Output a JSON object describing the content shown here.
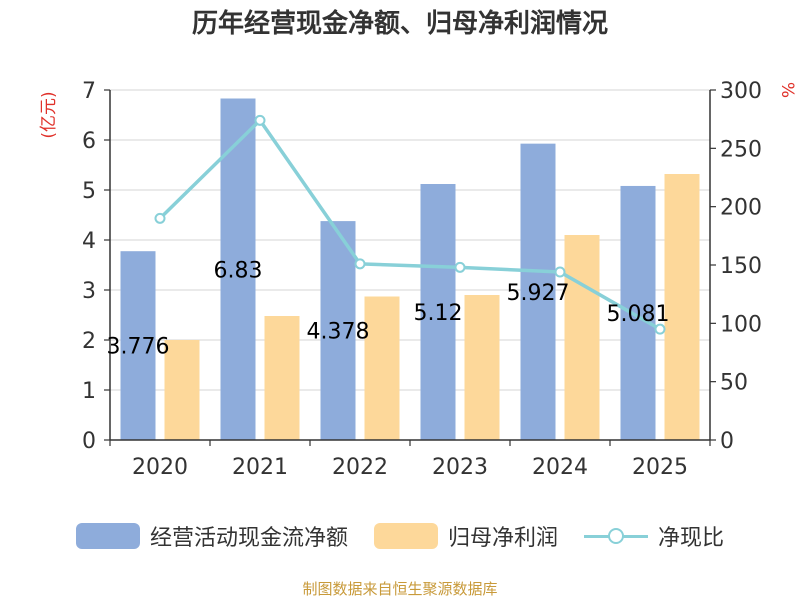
{
  "colors": {
    "bar_cashflow": "#8eacdb",
    "bar_profit": "#fdd89a",
    "line_ratio": "#88d0d8",
    "unit_label": "#e0312a",
    "source_text": "#c89a3a"
  },
  "chart_data": {
    "type": "bar",
    "title": "历年经营现金净额、归母净利润情况",
    "categories": [
      "2020",
      "2021",
      "2022",
      "2023",
      "2024",
      "2025"
    ],
    "y_left_label": "(亿元)",
    "y_right_label": "%",
    "ylim_left": [
      0,
      7
    ],
    "ylim_right": [
      0,
      300
    ],
    "yticks_left": [
      "0",
      "1",
      "2",
      "3",
      "4",
      "5",
      "6",
      "7"
    ],
    "yticks_right": [
      "0",
      "50",
      "100",
      "150",
      "200",
      "250",
      "300"
    ],
    "grid": true,
    "legend_position": "bottom",
    "series": [
      {
        "name": "经营活动现金流净额",
        "type": "bar",
        "axis": "left",
        "values": [
          3.776,
          6.83,
          4.378,
          5.12,
          5.927,
          5.081
        ],
        "labels": [
          "3.776",
          "6.83",
          "4.378",
          "5.12",
          "5.927",
          "5.081"
        ]
      },
      {
        "name": "归母净利润",
        "type": "bar",
        "axis": "left",
        "values": [
          2.0,
          2.48,
          2.87,
          2.9,
          4.1,
          5.32
        ]
      },
      {
        "name": "净现比",
        "type": "line",
        "axis": "right",
        "values": [
          190,
          274,
          151,
          148,
          144,
          95
        ]
      }
    ]
  },
  "legend": {
    "cashflow": "经营活动现金流净额",
    "profit": "归母净利润",
    "ratio": "净现比"
  },
  "source": "制图数据来自恒生聚源数据库"
}
